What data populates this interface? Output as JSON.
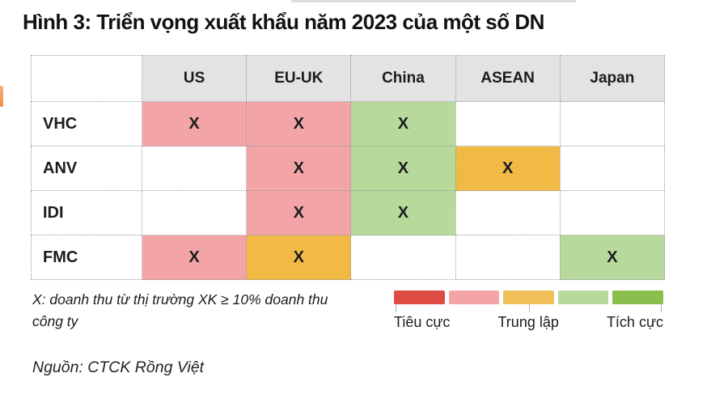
{
  "title": "Hình 3: Triển vọng xuất khẩu năm 2023 của một số DN",
  "colors": {
    "negative": "#f2a4a7",
    "neutral": "#f0ba45",
    "positive": "#b7d99b"
  },
  "table": {
    "mark": "X",
    "columns": [
      "US",
      "EU-UK",
      "China",
      "ASEAN",
      "Japan"
    ],
    "rows": [
      {
        "label": "VHC",
        "cells": [
          "negative",
          "negative",
          "positive",
          "",
          ""
        ]
      },
      {
        "label": "ANV",
        "cells": [
          "",
          "negative",
          "positive",
          "neutral",
          ""
        ]
      },
      {
        "label": "IDI",
        "cells": [
          "",
          "negative",
          "positive",
          "",
          ""
        ]
      },
      {
        "label": "FMC",
        "cells": [
          "negative",
          "neutral",
          "",
          "",
          "positive"
        ]
      }
    ]
  },
  "footnote": {
    "line1": "X: doanh thu từ thị trường XK ≥ 10% doanh thu",
    "line2": "công ty"
  },
  "legend": {
    "segments": [
      {
        "name": "negative-strong",
        "color": "#dd4b42"
      },
      {
        "name": "negative-light",
        "color": "#f2a4a7"
      },
      {
        "name": "neutral",
        "color": "#f0c058"
      },
      {
        "name": "positive-light",
        "color": "#b7d99b"
      },
      {
        "name": "positive-strong",
        "color": "#8abf4d"
      }
    ],
    "labels": [
      "Tiêu cực",
      "Trung lập",
      "Tích cực"
    ]
  },
  "source": "Nguồn: CTCK Rồng Việt",
  "chart_data": {
    "type": "heatmap",
    "title": "Hình 3: Triển vọng xuất khẩu năm 2023 của một số DN",
    "columns": [
      "US",
      "EU-UK",
      "China",
      "ASEAN",
      "Japan"
    ],
    "rows": [
      "VHC",
      "ANV",
      "IDI",
      "FMC"
    ],
    "values": [
      [
        "negative",
        "negative",
        "positive",
        null,
        null
      ],
      [
        null,
        "negative",
        "positive",
        "neutral",
        null
      ],
      [
        null,
        "negative",
        "positive",
        null,
        null
      ],
      [
        "negative",
        "neutral",
        null,
        null,
        "positive"
      ]
    ],
    "mark": "X",
    "mark_meaning": "X: doanh thu từ thị trường XK ≥ 10% doanh thu công ty",
    "legend_entries": [
      "Tiêu cực",
      "Trung lập",
      "Tích cực"
    ],
    "legend_position": "bottom-right",
    "source": "Nguồn: CTCK Rồng Việt"
  }
}
